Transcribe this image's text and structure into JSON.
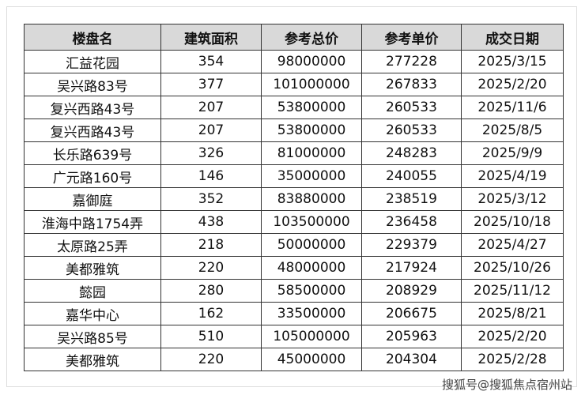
{
  "table": {
    "header": [
      "楼盘名",
      "建筑面积",
      "参考总价",
      "参考单价",
      "成交日期"
    ],
    "rows": [
      [
        "汇益花园",
        354,
        98000000,
        277228,
        "2025/3/15"
      ],
      [
        "吴兴路83号",
        377,
        101000000,
        267833,
        "2025/2/20"
      ],
      [
        "复兴西路43号",
        207,
        53800000,
        260533,
        "2025/11/6"
      ],
      [
        "复兴西路43号",
        207,
        53800000,
        260533,
        "2025/8/5"
      ],
      [
        "长乐路639号",
        326,
        81000000,
        248283,
        "2025/9/9"
      ],
      [
        "广元路160号",
        146,
        35000000,
        240055,
        "2025/4/19"
      ],
      [
        "嘉御庭",
        352,
        83880000,
        238519,
        "2025/3/12"
      ],
      [
        "淮海中路1754弄",
        438,
        103500000,
        236458,
        "2025/10/18"
      ],
      [
        "太原路25弄",
        218,
        50000000,
        229379,
        "2025/4/27"
      ],
      [
        "美都雅筑",
        220,
        48000000,
        217924,
        "2025/10/26"
      ],
      [
        "懿园",
        280,
        58500000,
        208929,
        "2025/11/12"
      ],
      [
        "嘉华中心",
        162,
        33500000,
        206675,
        "2025/8/21"
      ],
      [
        "吴兴路85号",
        510,
        105000000,
        205963,
        "2025/2/20"
      ],
      [
        "美都雅筑",
        220,
        45000000,
        204304,
        "2025/2/28"
      ]
    ]
  },
  "watermark": "搜狐号@搜狐焦点宿州站"
}
